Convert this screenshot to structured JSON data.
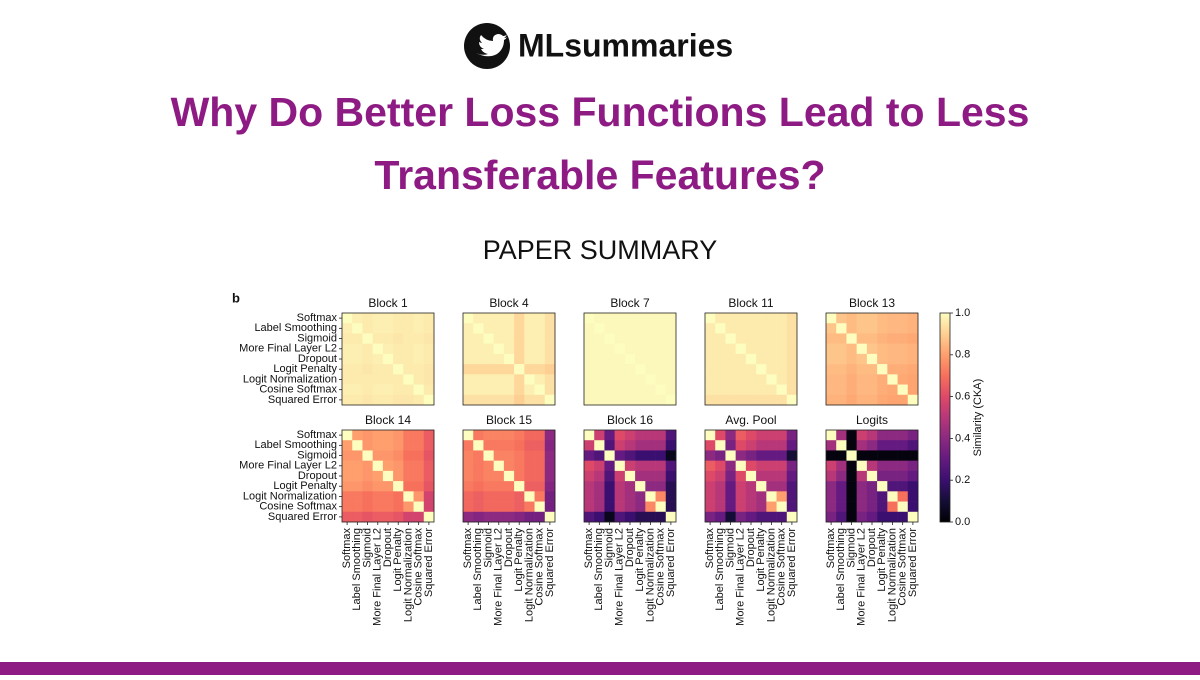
{
  "header": {
    "brand": "MLsummaries",
    "title_lines": [
      "Why Do Better Loss Functions Lead to Less",
      "Transferable Features?"
    ],
    "subtitle": "PAPER SUMMARY"
  },
  "chart_data": {
    "type": "heatmap",
    "panel_label": "b",
    "colormap": "magma",
    "categories": [
      "Softmax",
      "Label Smoothing",
      "Sigmoid",
      "More Final Layer L2",
      "Dropout",
      "Logit Penalty",
      "Logit Normalization",
      "Cosine Softmax",
      "Squared Error"
    ],
    "colorbar": {
      "label": "Similarity (CKA)",
      "lim": [
        0,
        1
      ],
      "ticks": [
        {
          "value": 0,
          "label": "0.0"
        },
        0.2,
        0.4,
        0.6,
        0.8,
        {
          "value": 1,
          "label": "1.0"
        }
      ]
    },
    "panels": [
      {
        "title": "Block 1",
        "values": [
          [
            1,
            0.97,
            0.96,
            0.97,
            0.97,
            0.96,
            0.96,
            0.97,
            0.96
          ],
          [
            0.97,
            1,
            0.96,
            0.97,
            0.97,
            0.96,
            0.96,
            0.97,
            0.96
          ],
          [
            0.96,
            0.96,
            1,
            0.96,
            0.96,
            0.95,
            0.96,
            0.96,
            0.95
          ],
          [
            0.97,
            0.97,
            0.96,
            1,
            0.97,
            0.96,
            0.96,
            0.97,
            0.96
          ],
          [
            0.97,
            0.97,
            0.96,
            0.97,
            1,
            0.96,
            0.96,
            0.97,
            0.96
          ],
          [
            0.96,
            0.96,
            0.95,
            0.96,
            0.96,
            1,
            0.96,
            0.96,
            0.95
          ],
          [
            0.96,
            0.96,
            0.96,
            0.96,
            0.96,
            0.96,
            1,
            0.96,
            0.95
          ],
          [
            0.97,
            0.97,
            0.96,
            0.97,
            0.97,
            0.96,
            0.96,
            1,
            0.96
          ],
          [
            0.96,
            0.96,
            0.95,
            0.96,
            0.96,
            0.95,
            0.95,
            0.96,
            1
          ]
        ]
      },
      {
        "title": "Block 4",
        "values": [
          [
            1,
            0.97,
            0.97,
            0.97,
            0.97,
            0.92,
            0.97,
            0.97,
            0.94
          ],
          [
            0.97,
            1,
            0.97,
            0.97,
            0.97,
            0.92,
            0.97,
            0.97,
            0.94
          ],
          [
            0.97,
            0.97,
            1,
            0.97,
            0.97,
            0.92,
            0.97,
            0.97,
            0.94
          ],
          [
            0.97,
            0.97,
            0.97,
            1,
            0.97,
            0.92,
            0.97,
            0.97,
            0.94
          ],
          [
            0.97,
            0.97,
            0.97,
            0.97,
            1,
            0.92,
            0.97,
            0.97,
            0.94
          ],
          [
            0.92,
            0.92,
            0.92,
            0.92,
            0.92,
            1,
            0.92,
            0.92,
            0.9
          ],
          [
            0.97,
            0.97,
            0.97,
            0.97,
            0.97,
            0.92,
            1,
            0.97,
            0.94
          ],
          [
            0.97,
            0.97,
            0.97,
            0.97,
            0.97,
            0.92,
            0.97,
            1,
            0.94
          ],
          [
            0.94,
            0.94,
            0.94,
            0.94,
            0.94,
            0.9,
            0.94,
            0.94,
            1
          ]
        ]
      },
      {
        "title": "Block 7",
        "values": [
          [
            1,
            0.99,
            0.99,
            0.99,
            0.99,
            0.99,
            0.99,
            0.99,
            0.99
          ],
          [
            0.99,
            1,
            0.99,
            0.99,
            0.99,
            0.99,
            0.99,
            0.99,
            0.99
          ],
          [
            0.99,
            0.99,
            1,
            0.99,
            0.99,
            0.99,
            0.99,
            0.99,
            0.99
          ],
          [
            0.99,
            0.99,
            0.99,
            1,
            0.99,
            0.99,
            0.99,
            0.99,
            0.99
          ],
          [
            0.99,
            0.99,
            0.99,
            0.99,
            1,
            0.99,
            0.99,
            0.99,
            0.99
          ],
          [
            0.99,
            0.99,
            0.99,
            0.99,
            0.99,
            1,
            0.99,
            0.99,
            0.99
          ],
          [
            0.99,
            0.99,
            0.99,
            0.99,
            0.99,
            0.99,
            1,
            0.99,
            0.99
          ],
          [
            0.99,
            0.99,
            0.99,
            0.99,
            0.99,
            0.99,
            0.99,
            1,
            0.99
          ],
          [
            0.99,
            0.99,
            0.99,
            0.99,
            0.99,
            0.99,
            0.99,
            0.99,
            1
          ]
        ]
      },
      {
        "title": "Block 11",
        "values": [
          [
            1,
            0.96,
            0.96,
            0.96,
            0.96,
            0.96,
            0.96,
            0.96,
            0.94
          ],
          [
            0.96,
            1,
            0.96,
            0.96,
            0.96,
            0.96,
            0.96,
            0.96,
            0.94
          ],
          [
            0.96,
            0.96,
            1,
            0.96,
            0.96,
            0.96,
            0.96,
            0.96,
            0.94
          ],
          [
            0.96,
            0.96,
            0.96,
            1,
            0.96,
            0.96,
            0.96,
            0.96,
            0.94
          ],
          [
            0.96,
            0.96,
            0.96,
            0.96,
            1,
            0.96,
            0.96,
            0.96,
            0.94
          ],
          [
            0.96,
            0.96,
            0.96,
            0.96,
            0.96,
            1,
            0.96,
            0.96,
            0.94
          ],
          [
            0.96,
            0.96,
            0.96,
            0.96,
            0.96,
            0.96,
            1,
            0.96,
            0.94
          ],
          [
            0.96,
            0.96,
            0.96,
            0.96,
            0.96,
            0.96,
            0.96,
            1,
            0.94
          ],
          [
            0.94,
            0.94,
            0.94,
            0.94,
            0.94,
            0.94,
            0.94,
            0.94,
            1
          ]
        ]
      },
      {
        "title": "Block 13",
        "values": [
          [
            1,
            0.88,
            0.86,
            0.88,
            0.88,
            0.86,
            0.85,
            0.85,
            0.84
          ],
          [
            0.88,
            1,
            0.86,
            0.88,
            0.88,
            0.86,
            0.85,
            0.85,
            0.84
          ],
          [
            0.86,
            0.86,
            1,
            0.86,
            0.86,
            0.84,
            0.83,
            0.83,
            0.82
          ],
          [
            0.88,
            0.88,
            0.86,
            1,
            0.88,
            0.86,
            0.85,
            0.85,
            0.84
          ],
          [
            0.88,
            0.88,
            0.86,
            0.88,
            1,
            0.86,
            0.85,
            0.85,
            0.84
          ],
          [
            0.86,
            0.86,
            0.84,
            0.86,
            0.86,
            1,
            0.83,
            0.83,
            0.82
          ],
          [
            0.85,
            0.85,
            0.83,
            0.85,
            0.85,
            0.83,
            1,
            0.82,
            0.81
          ],
          [
            0.85,
            0.85,
            0.83,
            0.85,
            0.85,
            0.83,
            0.82,
            1,
            0.81
          ],
          [
            0.84,
            0.84,
            0.82,
            0.84,
            0.84,
            0.82,
            0.81,
            0.81,
            1
          ]
        ]
      },
      {
        "title": "Block 14",
        "values": [
          [
            1,
            0.8,
            0.78,
            0.8,
            0.8,
            0.78,
            0.72,
            0.72,
            0.65
          ],
          [
            0.8,
            1,
            0.78,
            0.8,
            0.8,
            0.78,
            0.72,
            0.72,
            0.65
          ],
          [
            0.78,
            0.78,
            1,
            0.78,
            0.78,
            0.76,
            0.7,
            0.7,
            0.63
          ],
          [
            0.8,
            0.8,
            0.78,
            1,
            0.8,
            0.78,
            0.72,
            0.72,
            0.65
          ],
          [
            0.8,
            0.8,
            0.78,
            0.8,
            1,
            0.78,
            0.72,
            0.72,
            0.65
          ],
          [
            0.78,
            0.78,
            0.76,
            0.78,
            0.78,
            1,
            0.7,
            0.7,
            0.63
          ],
          [
            0.72,
            0.72,
            0.7,
            0.72,
            0.72,
            0.7,
            1,
            0.78,
            0.57
          ],
          [
            0.72,
            0.72,
            0.7,
            0.72,
            0.72,
            0.7,
            0.78,
            1,
            0.57
          ],
          [
            0.65,
            0.65,
            0.63,
            0.65,
            0.65,
            0.63,
            0.57,
            0.57,
            1
          ]
        ]
      },
      {
        "title": "Block 15",
        "values": [
          [
            1,
            0.72,
            0.74,
            0.74,
            0.74,
            0.72,
            0.68,
            0.68,
            0.4
          ],
          [
            0.72,
            1,
            0.72,
            0.72,
            0.72,
            0.7,
            0.66,
            0.66,
            0.38
          ],
          [
            0.74,
            0.72,
            1,
            0.74,
            0.74,
            0.72,
            0.68,
            0.68,
            0.4
          ],
          [
            0.74,
            0.72,
            0.74,
            1,
            0.74,
            0.72,
            0.68,
            0.68,
            0.4
          ],
          [
            0.74,
            0.72,
            0.74,
            0.74,
            1,
            0.72,
            0.68,
            0.68,
            0.4
          ],
          [
            0.72,
            0.7,
            0.72,
            0.72,
            0.72,
            1,
            0.66,
            0.66,
            0.38
          ],
          [
            0.68,
            0.66,
            0.68,
            0.68,
            0.68,
            0.66,
            1,
            0.72,
            0.34
          ],
          [
            0.68,
            0.66,
            0.68,
            0.68,
            0.68,
            0.66,
            0.72,
            1,
            0.34
          ],
          [
            0.4,
            0.38,
            0.4,
            0.4,
            0.4,
            0.38,
            0.34,
            0.34,
            1
          ]
        ]
      },
      {
        "title": "Block 16",
        "values": [
          [
            1,
            0.55,
            0.3,
            0.6,
            0.55,
            0.5,
            0.5,
            0.5,
            0.25
          ],
          [
            0.55,
            1,
            0.25,
            0.55,
            0.5,
            0.45,
            0.45,
            0.45,
            0.2
          ],
          [
            0.3,
            0.25,
            1,
            0.3,
            0.25,
            0.2,
            0.2,
            0.2,
            0.05
          ],
          [
            0.6,
            0.55,
            0.3,
            1,
            0.55,
            0.5,
            0.5,
            0.5,
            0.25
          ],
          [
            0.55,
            0.5,
            0.25,
            0.55,
            1,
            0.45,
            0.45,
            0.45,
            0.2
          ],
          [
            0.5,
            0.45,
            0.2,
            0.5,
            0.45,
            1,
            0.4,
            0.4,
            0.15
          ],
          [
            0.5,
            0.45,
            0.2,
            0.5,
            0.45,
            0.4,
            1,
            0.75,
            0.15
          ],
          [
            0.5,
            0.45,
            0.2,
            0.5,
            0.45,
            0.4,
            0.75,
            1,
            0.15
          ],
          [
            0.25,
            0.2,
            0.05,
            0.25,
            0.2,
            0.15,
            0.15,
            0.15,
            1
          ]
        ]
      },
      {
        "title": "Avg. Pool",
        "values": [
          [
            1,
            0.6,
            0.4,
            0.65,
            0.6,
            0.55,
            0.55,
            0.55,
            0.35
          ],
          [
            0.6,
            1,
            0.35,
            0.6,
            0.55,
            0.5,
            0.5,
            0.5,
            0.3
          ],
          [
            0.4,
            0.35,
            1,
            0.4,
            0.35,
            0.3,
            0.3,
            0.3,
            0.1
          ],
          [
            0.65,
            0.6,
            0.4,
            1,
            0.6,
            0.55,
            0.55,
            0.55,
            0.35
          ],
          [
            0.6,
            0.55,
            0.35,
            0.6,
            1,
            0.5,
            0.5,
            0.5,
            0.3
          ],
          [
            0.55,
            0.5,
            0.3,
            0.55,
            0.5,
            1,
            0.45,
            0.45,
            0.25
          ],
          [
            0.55,
            0.5,
            0.3,
            0.55,
            0.5,
            0.45,
            1,
            0.8,
            0.25
          ],
          [
            0.55,
            0.5,
            0.3,
            0.55,
            0.5,
            0.45,
            0.8,
            1,
            0.25
          ],
          [
            0.35,
            0.3,
            0.1,
            0.35,
            0.3,
            0.25,
            0.25,
            0.25,
            1
          ]
        ]
      },
      {
        "title": "Logits",
        "values": [
          [
            1,
            0.45,
            0.02,
            0.55,
            0.5,
            0.4,
            0.4,
            0.4,
            0.35
          ],
          [
            0.45,
            1,
            0.02,
            0.45,
            0.4,
            0.3,
            0.3,
            0.3,
            0.25
          ],
          [
            0.02,
            0.02,
            1,
            0.02,
            0.02,
            0.02,
            0.02,
            0.02,
            0.02
          ],
          [
            0.55,
            0.45,
            0.02,
            1,
            0.5,
            0.4,
            0.4,
            0.4,
            0.35
          ],
          [
            0.5,
            0.4,
            0.02,
            0.5,
            1,
            0.35,
            0.35,
            0.35,
            0.3
          ],
          [
            0.4,
            0.3,
            0.02,
            0.4,
            0.35,
            1,
            0.25,
            0.25,
            0.2
          ],
          [
            0.4,
            0.3,
            0.02,
            0.4,
            0.35,
            0.25,
            1,
            0.7,
            0.2
          ],
          [
            0.4,
            0.3,
            0.02,
            0.4,
            0.35,
            0.25,
            0.7,
            1,
            0.2
          ],
          [
            0.35,
            0.25,
            0.02,
            0.35,
            0.3,
            0.2,
            0.2,
            0.2,
            1
          ]
        ]
      }
    ]
  }
}
